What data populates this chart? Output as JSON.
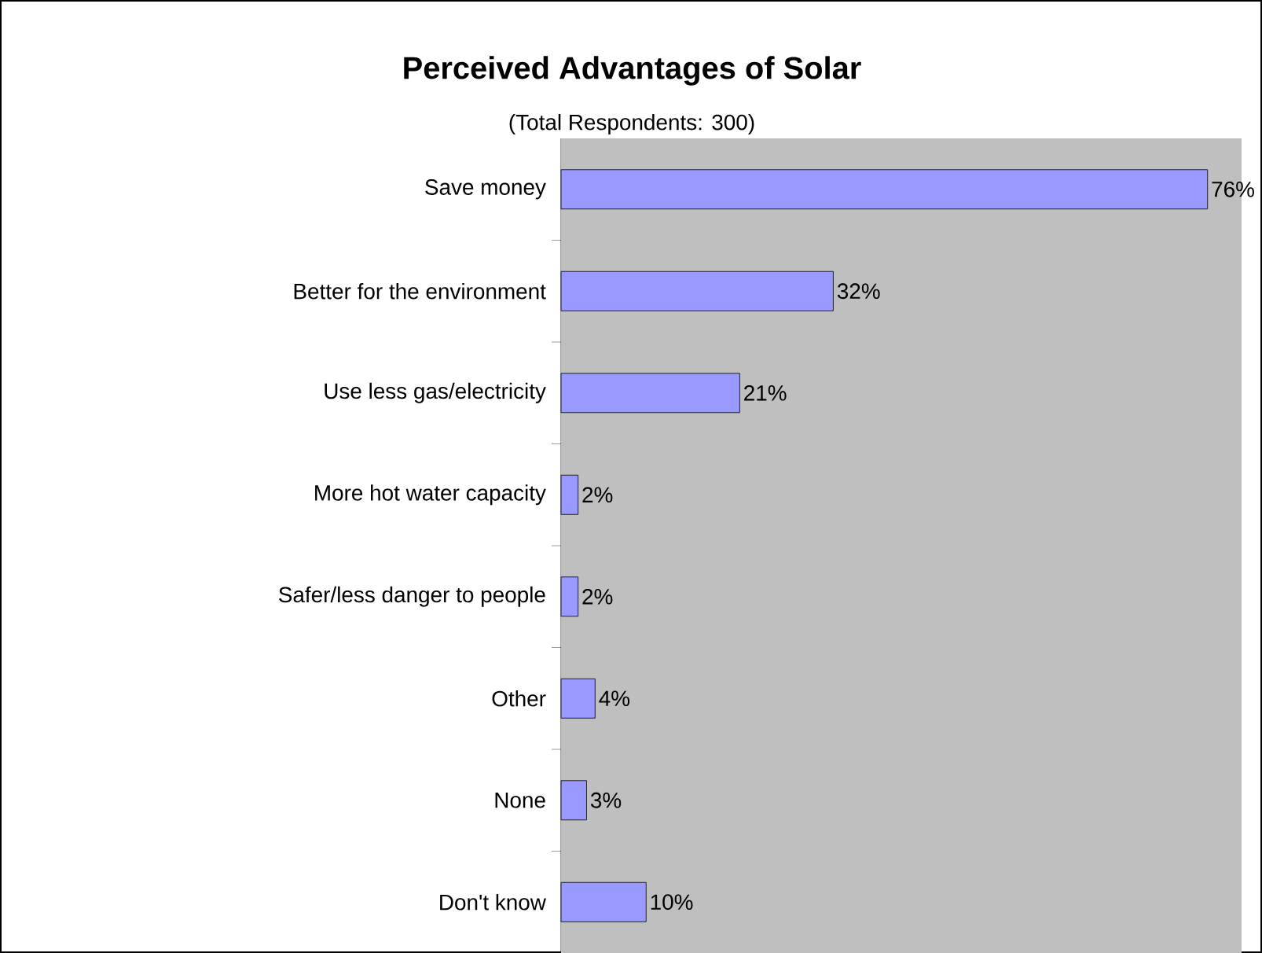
{
  "chart_data": {
    "type": "bar",
    "orientation": "horizontal",
    "title": "Perceived Advantages of Solar",
    "subtitle": "(Total Respondents: 300)",
    "categories": [
      "Save money",
      "Better for the environment",
      "Use less gas/electricity",
      "More hot water capacity",
      "Safer/less danger to people",
      "Other",
      "None",
      "Don't know"
    ],
    "values": [
      76,
      32,
      21,
      2,
      2,
      4,
      3,
      10
    ],
    "value_labels": [
      "76%",
      "32%",
      "21%",
      "2%",
      "2%",
      "4%",
      "3%",
      "10%"
    ],
    "color": "#9999ff",
    "xlim": [
      0,
      80
    ],
    "tick_labels": "y"
  }
}
